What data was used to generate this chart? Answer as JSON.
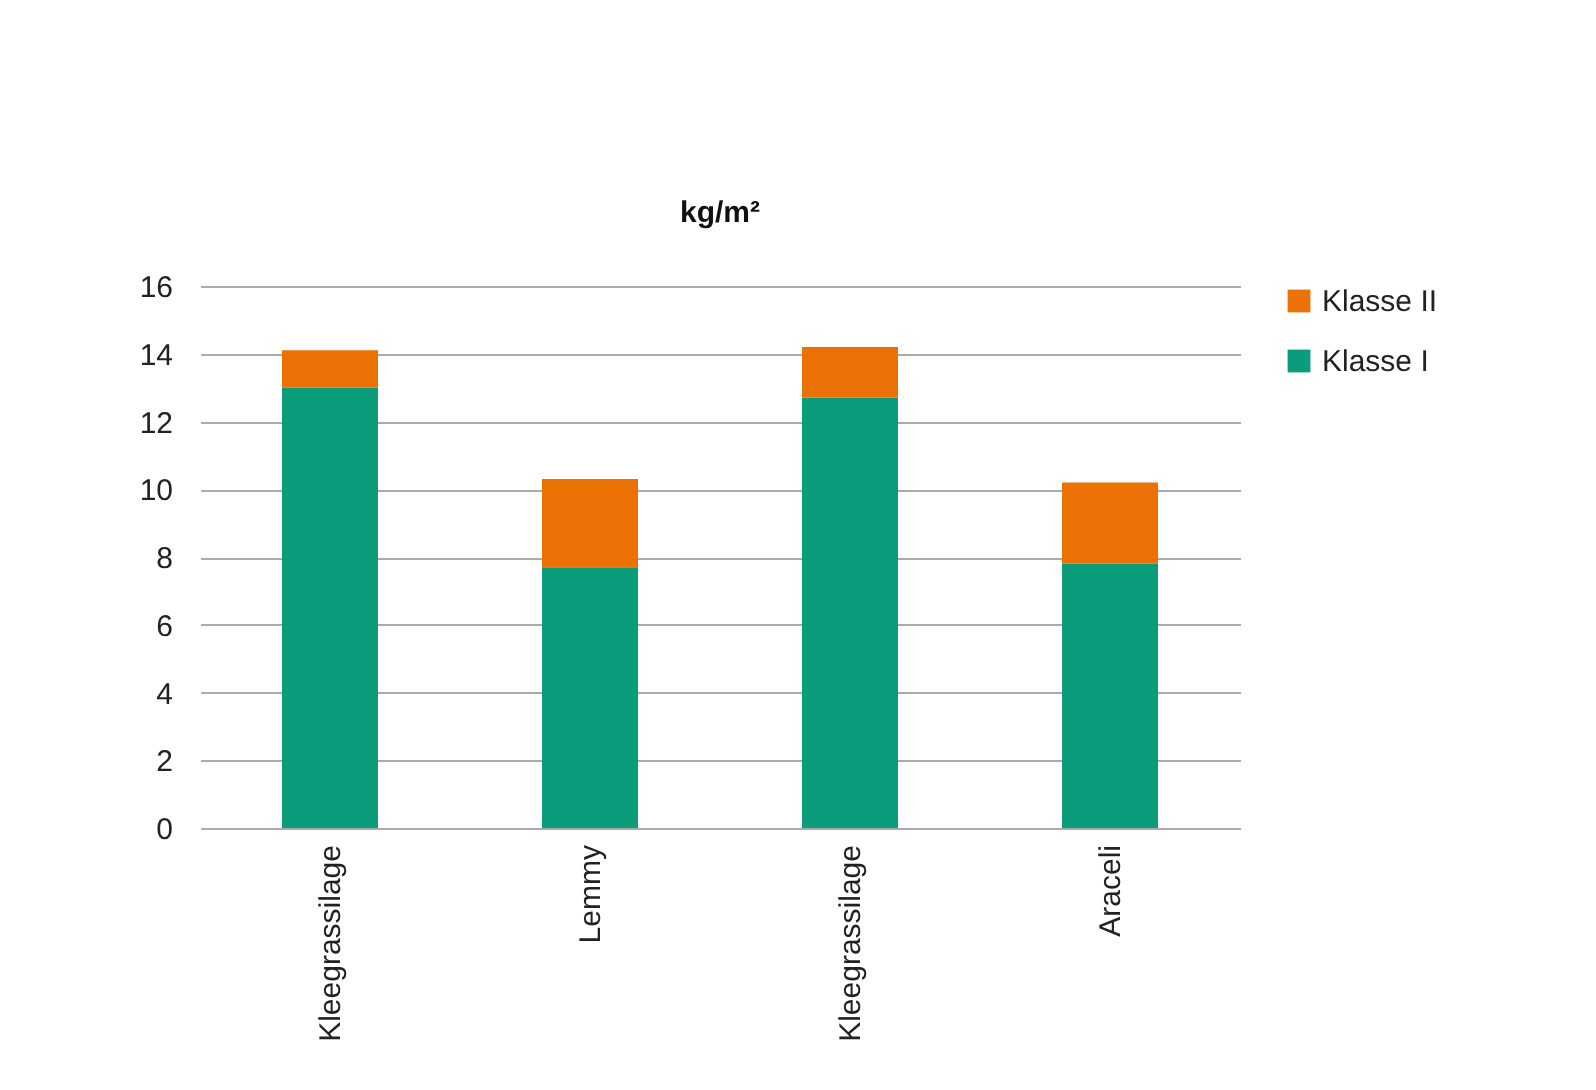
{
  "chart_data": {
    "type": "bar",
    "title": "kg/m²",
    "categories": [
      "Kleegrassilage",
      "Lemmy",
      "Kleegrassilage",
      "Araceli"
    ],
    "series": [
      {
        "name": "Klasse I",
        "color": "#0b9c7b",
        "values": [
          13.0,
          7.7,
          12.7,
          7.8
        ]
      },
      {
        "name": "Klasse II",
        "color": "#ec7104",
        "values": [
          1.1,
          2.6,
          1.5,
          2.4
        ]
      }
    ],
    "stacked": true,
    "ylim": [
      0,
      16
    ],
    "yticks": [
      0,
      2,
      4,
      6,
      8,
      10,
      12,
      14,
      16
    ],
    "grid": "y",
    "legend": "right"
  }
}
